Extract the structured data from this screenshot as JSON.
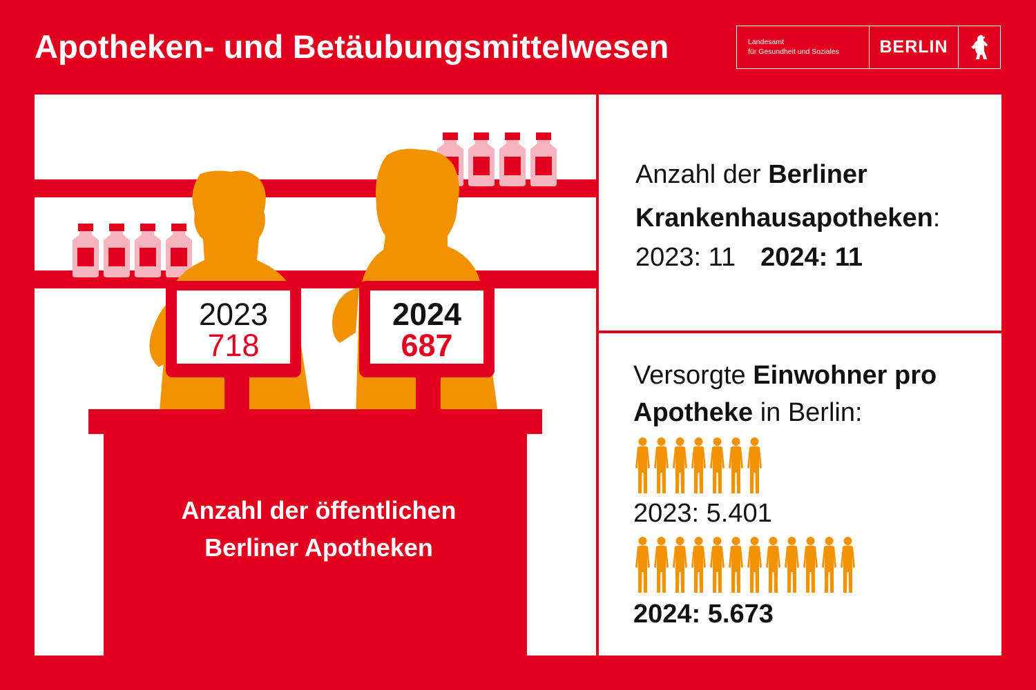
{
  "header": {
    "title": "Apotheken- und Betäubungsmittelwesen",
    "logo": {
      "line1": "Landesamt",
      "line2": "für Gesundheit und Soziales",
      "city": "BERLIN",
      "icon": "berlin-bear-icon"
    }
  },
  "public_pharmacies": {
    "label_line1": "Anzahl der öffentlichen",
    "label_line2": "Berliner Apotheken",
    "sign_2023": {
      "year": "2023",
      "value": "718"
    },
    "sign_2024": {
      "year": "2024",
      "value": "687"
    }
  },
  "hospital_pharmacies": {
    "heading_regular": "Anzahl der ",
    "heading_bold1": "Berliner",
    "heading_bold2": "Krankenhausapotheken",
    "heading_suffix": ":",
    "value_2023": "2023: 11",
    "value_2024": "2024: 11"
  },
  "residents_per_pharmacy": {
    "heading_regular1": "Versorgte ",
    "heading_bold1": "Einwohner pro",
    "heading_bold2": "Apotheke",
    "heading_regular2": " in Berlin:",
    "value_2023": "2023: 5.401",
    "value_2024": "2024: 5.673",
    "icons_2023": 7,
    "icons_2024": 12,
    "icon": "person-icon"
  },
  "colors": {
    "red": "#e3001f",
    "orange": "#f39200",
    "pink": "#f5b4be",
    "white": "#ffffff"
  }
}
